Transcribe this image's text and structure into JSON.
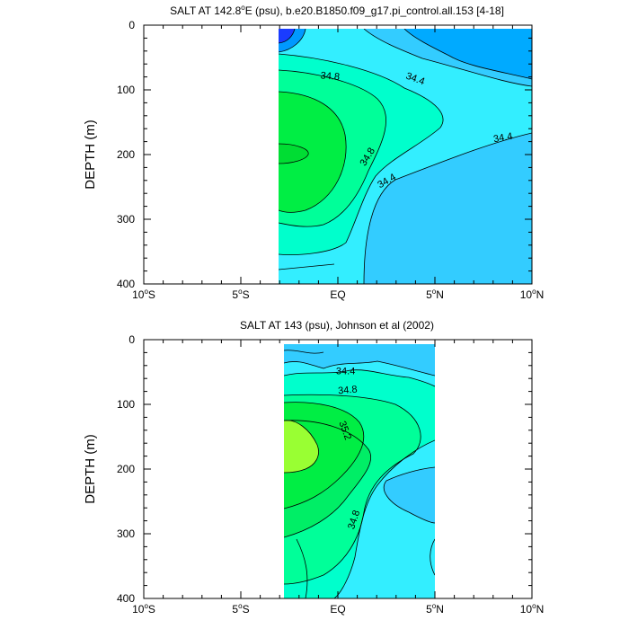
{
  "colors": {
    "deep_blue": "#1a3cff",
    "blue": "#00aaff",
    "light_blue": "#33ccff",
    "cyan": "#33eeff",
    "aqua": "#00ffcc",
    "sea_green": "#00ff99",
    "green": "#00ee44",
    "lime": "#99ff33",
    "line": "#000000"
  },
  "chart_data": [
    {
      "type": "contour",
      "title": "SALT AT 142.8°E (psu), b.e20.B1850.f09_g17.pi_control.all.153 [4-18]",
      "title_main": "SALT AT 142.8",
      "title_deg": "o",
      "title_rest": "E (psu), b.e20.B1850.f09_g17.pi_control.all.153 [4-18]",
      "ylabel": "DEPTH (m)",
      "xlim": [
        -10,
        10
      ],
      "ylim": [
        400,
        0
      ],
      "data_extent_lat": [
        -3,
        10
      ],
      "data_extent_depth": [
        5,
        400
      ],
      "x_ticks": [
        {
          "value": -10,
          "num": "10",
          "deg": "o",
          "hemi": "S"
        },
        {
          "value": -5,
          "num": "5",
          "deg": "o",
          "hemi": "S"
        },
        {
          "value": 0,
          "num": "EQ",
          "deg": "",
          "hemi": ""
        },
        {
          "value": 5,
          "num": "5",
          "deg": "o",
          "hemi": "N"
        },
        {
          "value": 10,
          "num": "10",
          "deg": "o",
          "hemi": "N"
        }
      ],
      "y_ticks": [
        {
          "value": 0,
          "label": "0"
        },
        {
          "value": 100,
          "label": "100"
        },
        {
          "value": 200,
          "label": "200"
        },
        {
          "value": 300,
          "label": "300"
        },
        {
          "value": 400,
          "label": "400"
        }
      ],
      "contour_labels": [
        {
          "text": "34.8",
          "lat": -0.4,
          "depth": 78,
          "rotate": 5
        },
        {
          "text": "34.4",
          "lat": 4.0,
          "depth": 82,
          "rotate": 20
        },
        {
          "text": "34.8",
          "lat": 1.5,
          "depth": 203,
          "rotate": -58
        },
        {
          "text": "34.4",
          "lat": 2.5,
          "depth": 240,
          "rotate": -30
        },
        {
          "text": "34.4",
          "lat": 8.5,
          "depth": 173,
          "rotate": -10
        }
      ]
    },
    {
      "type": "contour",
      "title": "SALT AT 143 (psu), Johnson et al (2002)",
      "ylabel": "DEPTH (m)",
      "xlim": [
        -10,
        10
      ],
      "ylim": [
        400,
        0
      ],
      "data_extent_lat": [
        -2.8,
        5
      ],
      "data_extent_depth": [
        5,
        400
      ],
      "x_ticks": [
        {
          "value": -10,
          "num": "10",
          "deg": "o",
          "hemi": "S"
        },
        {
          "value": -5,
          "num": "5",
          "deg": "o",
          "hemi": "S"
        },
        {
          "value": 0,
          "num": "EQ",
          "deg": "",
          "hemi": ""
        },
        {
          "value": 5,
          "num": "5",
          "deg": "o",
          "hemi": "N"
        },
        {
          "value": 10,
          "num": "10",
          "deg": "o",
          "hemi": "N"
        }
      ],
      "y_ticks": [
        {
          "value": 0,
          "label": "0"
        },
        {
          "value": 100,
          "label": "100"
        },
        {
          "value": 200,
          "label": "200"
        },
        {
          "value": 300,
          "label": "300"
        },
        {
          "value": 400,
          "label": "400"
        }
      ],
      "contour_labels": [
        {
          "text": "34.4",
          "lat": 0.4,
          "depth": 48,
          "rotate": 0
        },
        {
          "text": "34.8",
          "lat": 0.5,
          "depth": 77,
          "rotate": -5
        },
        {
          "text": "35.2",
          "lat": 0.4,
          "depth": 140,
          "rotate": 70
        },
        {
          "text": "34.8",
          "lat": 0.8,
          "depth": 278,
          "rotate": -72
        }
      ]
    }
  ]
}
